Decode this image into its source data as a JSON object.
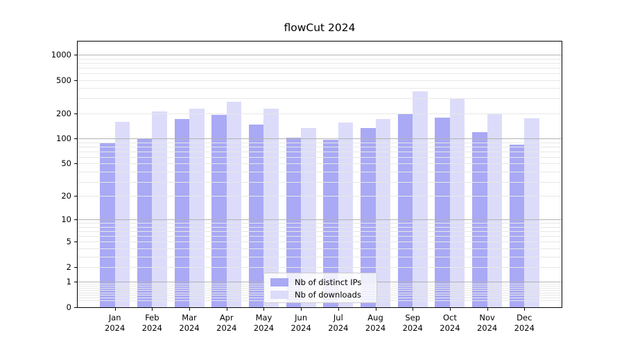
{
  "chart_data": {
    "type": "bar",
    "title": "flowCut 2024",
    "months": [
      "Jan",
      "Feb",
      "Mar",
      "Apr",
      "May",
      "Jun",
      "Jul",
      "Aug",
      "Sep",
      "Oct",
      "Nov",
      "Dec"
    ],
    "year": "2024",
    "series": [
      {
        "name": "Nb of distinct IPs",
        "color": "#a9a9f5",
        "values": [
          87,
          98,
          172,
          192,
          146,
          103,
          97,
          133,
          199,
          178,
          120,
          84
        ]
      },
      {
        "name": "Nb of downloads",
        "color": "#dcdcfa",
        "values": [
          159,
          211,
          228,
          275,
          226,
          134,
          157,
          172,
          363,
          303,
          197,
          175
        ]
      }
    ],
    "y_ticks": [
      0,
      1,
      2,
      5,
      10,
      20,
      50,
      100,
      200,
      500,
      1000
    ],
    "y_scale": "log10(1+v)",
    "grid": {
      "major_lines": [
        1,
        10,
        100,
        1000
      ],
      "minor_lines_per_decade": [
        2,
        3,
        4,
        5,
        6,
        7,
        8,
        9
      ]
    },
    "legend": {
      "position": "lower center"
    }
  }
}
